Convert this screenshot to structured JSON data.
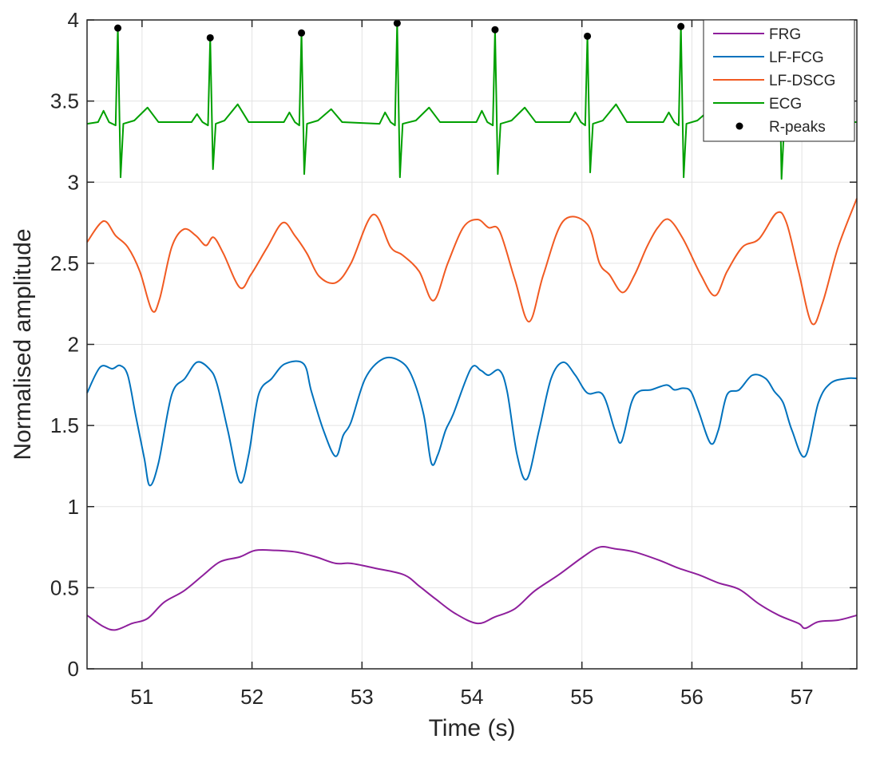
{
  "chart_data": {
    "type": "line",
    "title": "",
    "xlabel": "Time (s)",
    "ylabel": "Normalised amplitude",
    "xlim": [
      50.5,
      57.5
    ],
    "ylim": [
      0,
      4
    ],
    "xticks": [
      51,
      52,
      53,
      54,
      55,
      56,
      57
    ],
    "yticks": [
      0,
      0.5,
      1,
      1.5,
      2,
      2.5,
      3,
      3.5,
      4
    ],
    "ytick_labels": [
      "0",
      "0.5",
      "1",
      "1.5",
      "2",
      "2.5",
      "3",
      "3.5",
      "4"
    ],
    "grid": true,
    "legend_placement": "top-right",
    "series": [
      {
        "name": "FRG",
        "color": "#8e1f9c",
        "points": [
          [
            50.5,
            0.33
          ],
          [
            50.65,
            0.26
          ],
          [
            50.76,
            0.24
          ],
          [
            50.91,
            0.28
          ],
          [
            51.05,
            0.31
          ],
          [
            51.2,
            0.41
          ],
          [
            51.38,
            0.48
          ],
          [
            51.56,
            0.58
          ],
          [
            51.71,
            0.66
          ],
          [
            51.89,
            0.69
          ],
          [
            52.03,
            0.73
          ],
          [
            52.21,
            0.73
          ],
          [
            52.4,
            0.72
          ],
          [
            52.58,
            0.69
          ],
          [
            52.76,
            0.65
          ],
          [
            52.9,
            0.65
          ],
          [
            53.12,
            0.62
          ],
          [
            53.38,
            0.58
          ],
          [
            53.52,
            0.51
          ],
          [
            53.67,
            0.43
          ],
          [
            53.85,
            0.34
          ],
          [
            54.05,
            0.28
          ],
          [
            54.21,
            0.32
          ],
          [
            54.39,
            0.37
          ],
          [
            54.57,
            0.48
          ],
          [
            54.79,
            0.58
          ],
          [
            55.01,
            0.69
          ],
          [
            55.16,
            0.75
          ],
          [
            55.3,
            0.74
          ],
          [
            55.48,
            0.72
          ],
          [
            55.7,
            0.67
          ],
          [
            55.88,
            0.62
          ],
          [
            56.06,
            0.58
          ],
          [
            56.24,
            0.53
          ],
          [
            56.43,
            0.49
          ],
          [
            56.61,
            0.4
          ],
          [
            56.79,
            0.33
          ],
          [
            56.97,
            0.28
          ],
          [
            57.03,
            0.25
          ],
          [
            57.15,
            0.29
          ],
          [
            57.33,
            0.3
          ],
          [
            57.5,
            0.33
          ]
        ]
      },
      {
        "name": "LF-FCG",
        "color": "#0072bd",
        "points": [
          [
            50.5,
            1.7
          ],
          [
            50.62,
            1.86
          ],
          [
            50.73,
            1.85
          ],
          [
            50.8,
            1.87
          ],
          [
            50.87,
            1.81
          ],
          [
            50.94,
            1.57
          ],
          [
            51.02,
            1.3
          ],
          [
            51.07,
            1.13
          ],
          [
            51.15,
            1.27
          ],
          [
            51.27,
            1.69
          ],
          [
            51.39,
            1.79
          ],
          [
            51.5,
            1.89
          ],
          [
            51.61,
            1.85
          ],
          [
            51.68,
            1.76
          ],
          [
            51.78,
            1.47
          ],
          [
            51.89,
            1.15
          ],
          [
            51.97,
            1.32
          ],
          [
            52.06,
            1.69
          ],
          [
            52.18,
            1.79
          ],
          [
            52.3,
            1.88
          ],
          [
            52.47,
            1.88
          ],
          [
            52.54,
            1.71
          ],
          [
            52.65,
            1.47
          ],
          [
            52.76,
            1.31
          ],
          [
            52.83,
            1.44
          ],
          [
            52.9,
            1.52
          ],
          [
            53.03,
            1.79
          ],
          [
            53.19,
            1.91
          ],
          [
            53.34,
            1.9
          ],
          [
            53.45,
            1.81
          ],
          [
            53.56,
            1.57
          ],
          [
            53.63,
            1.27
          ],
          [
            53.69,
            1.32
          ],
          [
            53.76,
            1.47
          ],
          [
            53.83,
            1.57
          ],
          [
            53.99,
            1.85
          ],
          [
            54.08,
            1.84
          ],
          [
            54.15,
            1.81
          ],
          [
            54.25,
            1.84
          ],
          [
            54.32,
            1.71
          ],
          [
            54.41,
            1.32
          ],
          [
            54.5,
            1.17
          ],
          [
            54.61,
            1.47
          ],
          [
            54.72,
            1.79
          ],
          [
            54.83,
            1.89
          ],
          [
            54.94,
            1.81
          ],
          [
            55.05,
            1.7
          ],
          [
            55.19,
            1.69
          ],
          [
            55.3,
            1.47
          ],
          [
            55.36,
            1.4
          ],
          [
            55.45,
            1.64
          ],
          [
            55.52,
            1.71
          ],
          [
            55.63,
            1.72
          ],
          [
            55.77,
            1.75
          ],
          [
            55.84,
            1.72
          ],
          [
            55.92,
            1.73
          ],
          [
            55.99,
            1.71
          ],
          [
            56.06,
            1.59
          ],
          [
            56.17,
            1.39
          ],
          [
            56.24,
            1.47
          ],
          [
            56.32,
            1.69
          ],
          [
            56.43,
            1.72
          ],
          [
            56.55,
            1.81
          ],
          [
            56.67,
            1.79
          ],
          [
            56.75,
            1.71
          ],
          [
            56.83,
            1.64
          ],
          [
            56.91,
            1.47
          ],
          [
            57.03,
            1.31
          ],
          [
            57.15,
            1.64
          ],
          [
            57.26,
            1.76
          ],
          [
            57.41,
            1.79
          ],
          [
            57.5,
            1.79
          ]
        ]
      },
      {
        "name": "LF-DSCG",
        "color": "#f15a22",
        "points": [
          [
            50.5,
            2.63
          ],
          [
            50.65,
            2.76
          ],
          [
            50.76,
            2.67
          ],
          [
            50.87,
            2.6
          ],
          [
            50.98,
            2.45
          ],
          [
            51.09,
            2.21
          ],
          [
            51.16,
            2.28
          ],
          [
            51.27,
            2.6
          ],
          [
            51.38,
            2.71
          ],
          [
            51.49,
            2.67
          ],
          [
            51.58,
            2.61
          ],
          [
            51.65,
            2.66
          ],
          [
            51.74,
            2.56
          ],
          [
            51.89,
            2.35
          ],
          [
            51.99,
            2.43
          ],
          [
            52.14,
            2.6
          ],
          [
            52.28,
            2.75
          ],
          [
            52.39,
            2.67
          ],
          [
            52.5,
            2.56
          ],
          [
            52.61,
            2.42
          ],
          [
            52.76,
            2.38
          ],
          [
            52.9,
            2.5
          ],
          [
            53.1,
            2.8
          ],
          [
            53.26,
            2.6
          ],
          [
            53.37,
            2.55
          ],
          [
            53.52,
            2.45
          ],
          [
            53.65,
            2.27
          ],
          [
            53.78,
            2.5
          ],
          [
            53.92,
            2.72
          ],
          [
            54.05,
            2.77
          ],
          [
            54.15,
            2.72
          ],
          [
            54.25,
            2.7
          ],
          [
            54.39,
            2.4
          ],
          [
            54.52,
            2.14
          ],
          [
            54.65,
            2.43
          ],
          [
            54.83,
            2.76
          ],
          [
            55.05,
            2.74
          ],
          [
            55.16,
            2.5
          ],
          [
            55.25,
            2.43
          ],
          [
            55.37,
            2.32
          ],
          [
            55.48,
            2.43
          ],
          [
            55.59,
            2.6
          ],
          [
            55.69,
            2.72
          ],
          [
            55.79,
            2.77
          ],
          [
            55.92,
            2.65
          ],
          [
            56.08,
            2.43
          ],
          [
            56.21,
            2.3
          ],
          [
            56.32,
            2.45
          ],
          [
            56.46,
            2.6
          ],
          [
            56.61,
            2.65
          ],
          [
            56.77,
            2.81
          ],
          [
            56.86,
            2.75
          ],
          [
            56.97,
            2.45
          ],
          [
            57.09,
            2.13
          ],
          [
            57.19,
            2.26
          ],
          [
            57.33,
            2.6
          ],
          [
            57.5,
            2.9
          ]
        ]
      },
      {
        "name": "ECG",
        "color": "#00a000",
        "points": [
          [
            50.5,
            3.36
          ],
          [
            50.6,
            3.37
          ],
          [
            50.65,
            3.44
          ],
          [
            50.7,
            3.37
          ],
          [
            50.76,
            3.35
          ],
          [
            50.78,
            3.95
          ],
          [
            50.805,
            3.03
          ],
          [
            50.83,
            3.36
          ],
          [
            50.93,
            3.38
          ],
          [
            51.05,
            3.46
          ],
          [
            51.15,
            3.37
          ],
          [
            51.45,
            3.37
          ],
          [
            51.5,
            3.42
          ],
          [
            51.55,
            3.37
          ],
          [
            51.6,
            3.35
          ],
          [
            51.62,
            3.89
          ],
          [
            51.645,
            3.08
          ],
          [
            51.67,
            3.36
          ],
          [
            51.75,
            3.38
          ],
          [
            51.87,
            3.48
          ],
          [
            51.97,
            3.37
          ],
          [
            52.29,
            3.37
          ],
          [
            52.34,
            3.43
          ],
          [
            52.39,
            3.37
          ],
          [
            52.43,
            3.35
          ],
          [
            52.45,
            3.92
          ],
          [
            52.475,
            3.05
          ],
          [
            52.5,
            3.36
          ],
          [
            52.6,
            3.38
          ],
          [
            52.72,
            3.45
          ],
          [
            52.82,
            3.37
          ],
          [
            53.16,
            3.36
          ],
          [
            53.21,
            3.43
          ],
          [
            53.26,
            3.37
          ],
          [
            53.3,
            3.35
          ],
          [
            53.32,
            3.98
          ],
          [
            53.345,
            3.03
          ],
          [
            53.37,
            3.36
          ],
          [
            53.49,
            3.38
          ],
          [
            53.61,
            3.46
          ],
          [
            53.71,
            3.37
          ],
          [
            54.04,
            3.37
          ],
          [
            54.09,
            3.44
          ],
          [
            54.14,
            3.37
          ],
          [
            54.19,
            3.35
          ],
          [
            54.21,
            3.94
          ],
          [
            54.235,
            3.05
          ],
          [
            54.26,
            3.36
          ],
          [
            54.36,
            3.38
          ],
          [
            54.48,
            3.46
          ],
          [
            54.58,
            3.37
          ],
          [
            54.89,
            3.37
          ],
          [
            54.94,
            3.43
          ],
          [
            54.99,
            3.37
          ],
          [
            55.03,
            3.35
          ],
          [
            55.05,
            3.9
          ],
          [
            55.075,
            3.06
          ],
          [
            55.1,
            3.36
          ],
          [
            55.19,
            3.38
          ],
          [
            55.31,
            3.48
          ],
          [
            55.41,
            3.37
          ],
          [
            55.74,
            3.37
          ],
          [
            55.79,
            3.43
          ],
          [
            55.84,
            3.37
          ],
          [
            55.88,
            3.35
          ],
          [
            55.9,
            3.96
          ],
          [
            55.925,
            3.03
          ],
          [
            55.95,
            3.36
          ],
          [
            56.05,
            3.38
          ],
          [
            56.17,
            3.45
          ],
          [
            56.27,
            3.37
          ],
          [
            56.63,
            3.37
          ],
          [
            56.68,
            3.43
          ],
          [
            56.73,
            3.37
          ],
          [
            56.77,
            3.35
          ],
          [
            56.79,
            3.97
          ],
          [
            56.815,
            3.02
          ],
          [
            56.84,
            3.36
          ],
          [
            56.94,
            3.38
          ],
          [
            57.06,
            3.46
          ],
          [
            57.16,
            3.37
          ],
          [
            57.5,
            3.37
          ]
        ]
      },
      {
        "name": "R-peaks",
        "color": "#000000",
        "marker": "dot",
        "points": [
          [
            50.78,
            3.95
          ],
          [
            51.62,
            3.89
          ],
          [
            52.45,
            3.92
          ],
          [
            53.32,
            3.98
          ],
          [
            54.21,
            3.94
          ],
          [
            55.05,
            3.9
          ],
          [
            55.9,
            3.96
          ]
        ]
      }
    ]
  }
}
